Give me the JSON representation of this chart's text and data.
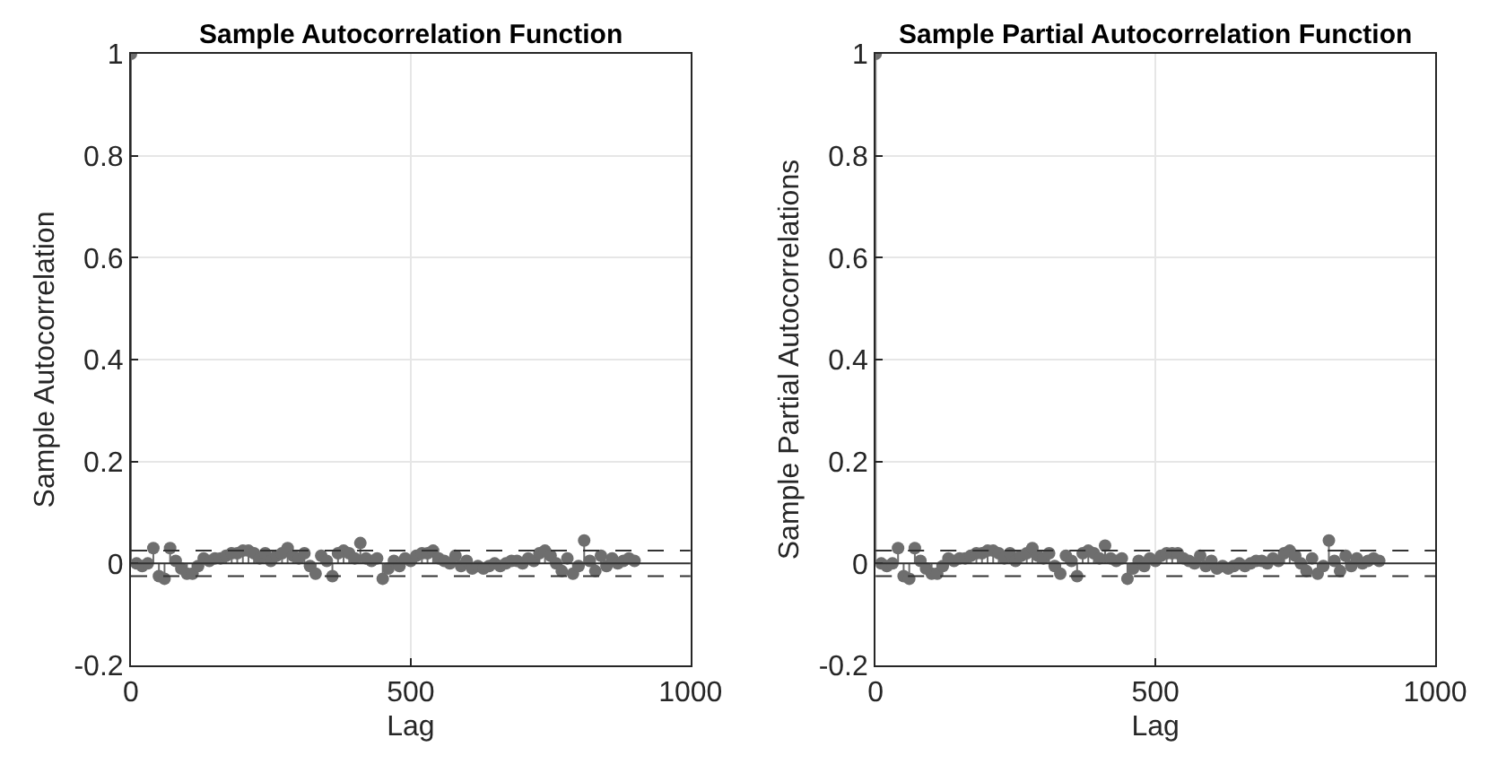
{
  "chart_data": [
    {
      "type": "lollipop",
      "title": "Sample Autocorrelation Function",
      "xlabel": "Lag",
      "ylabel": "Sample Autocorrelation",
      "color": "#6e6e6e",
      "marker": "circle",
      "grid": true,
      "x": [
        0,
        10,
        20,
        30,
        40,
        50,
        60,
        70,
        80,
        90,
        100,
        110,
        120,
        130,
        140,
        150,
        160,
        170,
        180,
        190,
        200,
        210,
        220,
        230,
        240,
        250,
        260,
        270,
        280,
        290,
        300,
        310,
        320,
        330,
        340,
        350,
        360,
        370,
        380,
        390,
        400,
        410,
        420,
        430,
        440,
        450,
        460,
        470,
        480,
        490,
        500,
        510,
        520,
        530,
        540,
        550,
        560,
        570,
        580,
        590,
        600,
        610,
        620,
        630,
        640,
        650,
        660,
        670,
        680,
        690,
        700,
        710,
        720,
        730,
        740,
        750,
        760,
        770,
        780,
        790,
        800,
        810,
        820,
        830,
        840,
        850,
        860,
        870,
        880,
        890,
        900
      ],
      "values": [
        1,
        0.0,
        -0.005,
        0.0,
        0.03,
        -0.025,
        -0.03,
        0.03,
        0.005,
        -0.01,
        -0.02,
        -0.02,
        -0.005,
        0.01,
        0.005,
        0.01,
        0.01,
        0.015,
        0.02,
        0.02,
        0.025,
        0.025,
        0.02,
        0.01,
        0.02,
        0.005,
        0.015,
        0.02,
        0.03,
        0.015,
        0.01,
        0.02,
        -0.005,
        -0.02,
        0.015,
        0.005,
        -0.025,
        0.02,
        0.025,
        0.02,
        0.01,
        0.04,
        0.01,
        0.005,
        0.01,
        -0.03,
        -0.01,
        0.005,
        -0.005,
        0.01,
        0.005,
        0.015,
        0.02,
        0.02,
        0.025,
        0.01,
        0.005,
        0.0,
        0.015,
        -0.005,
        0.005,
        -0.01,
        -0.005,
        -0.01,
        -0.005,
        0.0,
        -0.005,
        0.0,
        0.005,
        0.005,
        0.0,
        0.01,
        0.005,
        0.02,
        0.025,
        0.015,
        0.0,
        -0.015,
        0.01,
        -0.02,
        -0.005,
        0.045,
        0.005,
        -0.015,
        0.015,
        -0.005,
        0.01,
        0.0,
        0.005,
        0.01,
        0.005
      ],
      "xlim": [
        0,
        1000
      ],
      "xticks": [
        0,
        500,
        1000
      ],
      "ylim": [
        -0.2,
        1
      ],
      "yticks": [
        -0.2,
        0,
        0.2,
        0.4,
        0.6,
        0.8,
        1
      ],
      "ref_lines": [
        {
          "axis": "y",
          "value": 0,
          "color": "#333333",
          "line_style": "solid"
        },
        {
          "axis": "y",
          "value": 0.025,
          "color": "#333333",
          "line_style": "dashed"
        },
        {
          "axis": "y",
          "value": -0.025,
          "color": "#333333",
          "line_style": "dashed"
        }
      ]
    },
    {
      "type": "lollipop",
      "title": "Sample Partial Autocorrelation Function",
      "xlabel": "Lag",
      "ylabel": "Sample Partial Autocorrelations",
      "color": "#6e6e6e",
      "marker": "circle",
      "grid": true,
      "x": [
        0,
        10,
        20,
        30,
        40,
        50,
        60,
        70,
        80,
        90,
        100,
        110,
        120,
        130,
        140,
        150,
        160,
        170,
        180,
        190,
        200,
        210,
        220,
        230,
        240,
        250,
        260,
        270,
        280,
        290,
        300,
        310,
        320,
        330,
        340,
        350,
        360,
        370,
        380,
        390,
        400,
        410,
        420,
        430,
        440,
        450,
        460,
        470,
        480,
        490,
        500,
        510,
        520,
        530,
        540,
        550,
        560,
        570,
        580,
        590,
        600,
        610,
        620,
        630,
        640,
        650,
        660,
        670,
        680,
        690,
        700,
        710,
        720,
        730,
        740,
        750,
        760,
        770,
        780,
        790,
        800,
        810,
        820,
        830,
        840,
        850,
        860,
        870,
        880,
        890,
        900
      ],
      "values": [
        1,
        0.0,
        -0.005,
        0.0,
        0.03,
        -0.025,
        -0.03,
        0.03,
        0.005,
        -0.01,
        -0.02,
        -0.02,
        -0.005,
        0.01,
        0.005,
        0.01,
        0.01,
        0.015,
        0.02,
        0.02,
        0.025,
        0.025,
        0.02,
        0.01,
        0.02,
        0.005,
        0.015,
        0.02,
        0.03,
        0.015,
        0.01,
        0.02,
        -0.005,
        -0.02,
        0.015,
        0.005,
        -0.025,
        0.02,
        0.025,
        0.02,
        0.01,
        0.035,
        0.01,
        0.005,
        0.01,
        -0.03,
        -0.01,
        0.005,
        -0.005,
        0.01,
        0.005,
        0.015,
        0.02,
        0.02,
        0.02,
        0.01,
        0.005,
        0.0,
        0.015,
        -0.005,
        0.005,
        -0.01,
        -0.005,
        -0.01,
        -0.005,
        0.0,
        -0.005,
        0.0,
        0.005,
        0.005,
        0.0,
        0.01,
        0.005,
        0.02,
        0.025,
        0.015,
        0.0,
        -0.015,
        0.01,
        -0.02,
        -0.005,
        0.045,
        0.005,
        -0.015,
        0.015,
        -0.005,
        0.01,
        0.0,
        0.005,
        0.01,
        0.005
      ],
      "xlim": [
        0,
        1000
      ],
      "xticks": [
        0,
        500,
        1000
      ],
      "ylim": [
        -0.2,
        1
      ],
      "yticks": [
        -0.2,
        0,
        0.2,
        0.4,
        0.6,
        0.8,
        1
      ],
      "ref_lines": [
        {
          "axis": "y",
          "value": 0,
          "color": "#333333",
          "line_style": "solid"
        },
        {
          "axis": "y",
          "value": 0.025,
          "color": "#333333",
          "line_style": "dashed"
        },
        {
          "axis": "y",
          "value": -0.025,
          "color": "#333333",
          "line_style": "dashed"
        }
      ]
    }
  ]
}
